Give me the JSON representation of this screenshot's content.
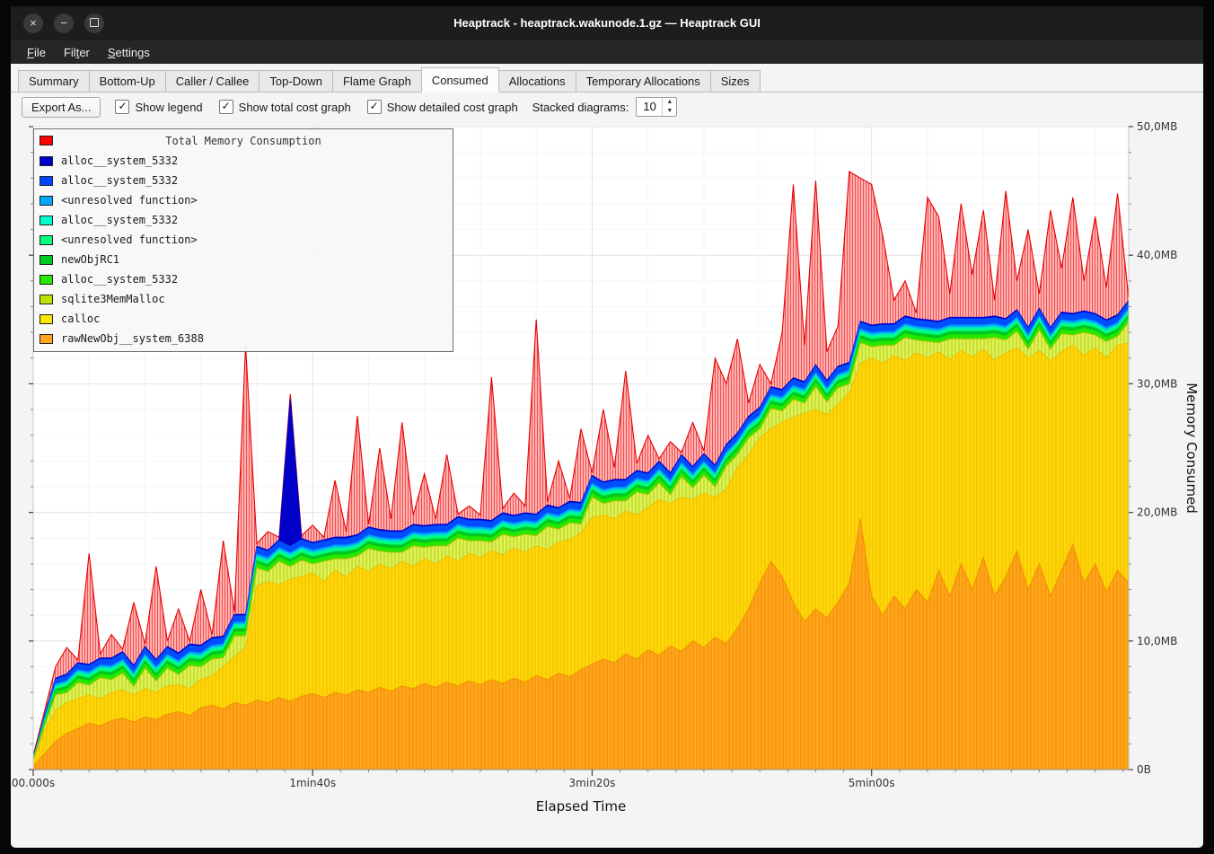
{
  "window": {
    "title": "Heaptrack - heaptrack.wakunode.1.gz — Heaptrack GUI",
    "buttons": [
      "close",
      "minimize",
      "maximize"
    ]
  },
  "icons": {
    "close": "×",
    "minimize": "−",
    "check": "✓",
    "spin_up": "▲",
    "spin_down": "▼"
  },
  "menu": {
    "items": [
      {
        "label": "File",
        "underline": 0
      },
      {
        "label": "Filter",
        "underline": 3
      },
      {
        "label": "Settings",
        "underline": 0
      }
    ]
  },
  "tabs": {
    "active_index": 5,
    "items": [
      "Summary",
      "Bottom-Up",
      "Caller / Callee",
      "Top-Down",
      "Flame Graph",
      "Consumed",
      "Allocations",
      "Temporary Allocations",
      "Sizes"
    ]
  },
  "toolbar": {
    "export_label": "Export As...",
    "checkboxes": [
      {
        "id": "show-legend",
        "label": "Show legend",
        "checked": true
      },
      {
        "id": "show-total-cost-graph",
        "label": "Show total cost graph",
        "checked": true
      },
      {
        "id": "show-detailed-cost-graph",
        "label": "Show detailed cost graph",
        "checked": true
      }
    ],
    "stacked_diagrams": {
      "label": "Stacked diagrams:",
      "value": "10"
    }
  },
  "chart_data": {
    "type": "area",
    "stacked": true,
    "xlabel": "Elapsed Time",
    "ylabel": "Memory Consumed",
    "x_seconds_step": 4,
    "x_max_seconds": 392,
    "y_max_mb": 50,
    "x_minor_tick_seconds": 10,
    "y_minor_tick_mb": 2,
    "x_ticks": [
      {
        "t": 0,
        "label": "00.000s"
      },
      {
        "t": 100,
        "label": "1min40s"
      },
      {
        "t": 200,
        "label": "3min20s"
      },
      {
        "t": 300,
        "label": "5min00s"
      }
    ],
    "y_ticks": [
      {
        "mb": 0,
        "label": "0B"
      },
      {
        "mb": 10,
        "label": "10,0MB"
      },
      {
        "mb": 20,
        "label": "20,0MB"
      },
      {
        "mb": 30,
        "label": "30,0MB"
      },
      {
        "mb": 40,
        "label": "40,0MB"
      },
      {
        "mb": 50,
        "label": "50,0MB"
      }
    ],
    "legend": {
      "title": "Total Memory Consumption",
      "title_color": "#ff0000",
      "position": "top-left",
      "items": [
        {
          "label": "alloc__system_5332",
          "color": "#0000cd"
        },
        {
          "label": "alloc__system_5332",
          "color": "#0046ff"
        },
        {
          "label": "<unresolved function>",
          "color": "#00a6ff"
        },
        {
          "label": "alloc__system_5332",
          "color": "#00ffcf"
        },
        {
          "label": "<unresolved function>",
          "color": "#00ff7f"
        },
        {
          "label": "newObjRC1",
          "color": "#00cc22"
        },
        {
          "label": "alloc__system_5332",
          "color": "#23e800"
        },
        {
          "label": "sqlite3MemMalloc",
          "color": "#bfe300"
        },
        {
          "label": "calloc",
          "color": "#ffe600"
        },
        {
          "label": "rawNewObj__system_6388",
          "color": "#ffa51e"
        }
      ]
    },
    "colors": {
      "red_fill": "#ffb6b6",
      "red_hatch": "#f25050",
      "red_stroke": "#e60000",
      "sqlite_fill": "#dff063",
      "sqlite_hatch": "#b6d800",
      "sqlite_stroke": "#a2c600",
      "calloc_fill": "#ffd60a",
      "calloc_hatch": "#f0c200",
      "calloc_stroke": "#eec200",
      "orange_fill": "#ffa51e",
      "orange_hatch": "#f29100",
      "orange_stroke": "#ef9400",
      "grid_major": "#e2e2e2",
      "grid_minor": "#f5f5f5",
      "axis": "#8a8a8a"
    },
    "layers": {
      "rawNewObj_top_mb": [
        0.3,
        1.2,
        2.2,
        2.8,
        3.2,
        3.6,
        3.4,
        3.8,
        4.0,
        3.7,
        4.1,
        3.9,
        4.3,
        4.5,
        4.2,
        4.8,
        5.0,
        4.7,
        5.2,
        5.0,
        5.4,
        5.2,
        5.6,
        5.3,
        5.7,
        5.9,
        5.6,
        6.0,
        5.8,
        6.2,
        6.0,
        6.4,
        6.1,
        6.5,
        6.3,
        6.7,
        6.4,
        6.8,
        6.5,
        6.9,
        6.6,
        7.0,
        6.7,
        7.1,
        6.8,
        7.3,
        7.0,
        7.5,
        7.2,
        7.8,
        8.2,
        8.6,
        8.3,
        9.0,
        8.6,
        9.3,
        8.9,
        9.6,
        9.2,
        10.0,
        9.5,
        10.3,
        9.8,
        11.0,
        12.5,
        14.5,
        16.2,
        15.0,
        13.0,
        11.5,
        12.5,
        11.8,
        13.0,
        14.5,
        19.5,
        13.5,
        12.0,
        13.5,
        12.5,
        14.0,
        13.0,
        15.5,
        13.5,
        16.0,
        14.0,
        16.5,
        13.5,
        15.0,
        17.0,
        14.0,
        16.0,
        13.5,
        15.5,
        17.5,
        14.5,
        16.0,
        13.8,
        15.5,
        14.5
      ],
      "calloc_top_mb": [
        0.6,
        3.0,
        4.6,
        5.2,
        5.5,
        5.8,
        5.5,
        6.0,
        6.2,
        5.8,
        6.3,
        6.0,
        6.5,
        6.6,
        6.3,
        7.0,
        7.3,
        8.0,
        8.8,
        9.5,
        14.3,
        14.6,
        14.4,
        14.8,
        15.0,
        15.3,
        14.6,
        15.5,
        15.0,
        15.8,
        15.4,
        16.0,
        15.6,
        16.2,
        15.8,
        16.4,
        16.0,
        16.6,
        16.2,
        16.8,
        16.5,
        17.0,
        16.7,
        17.2,
        16.9,
        17.4,
        17.1,
        17.7,
        17.9,
        18.4,
        19.6,
        19.8,
        19.5,
        20.1,
        19.8,
        20.4,
        21.0,
        20.7,
        21.2,
        21.0,
        21.5,
        21.2,
        21.8,
        23.5,
        24.5,
        25.8,
        26.5,
        27.0,
        27.4,
        27.7,
        28.0,
        27.6,
        28.4,
        29.3,
        31.6,
        32.0,
        31.6,
        32.2,
        31.8,
        32.4,
        32.0,
        32.5,
        31.9,
        32.6,
        32.1,
        32.7,
        31.8,
        32.4,
        32.8,
        32.0,
        32.6,
        31.8,
        32.5,
        33.0,
        32.2,
        32.8,
        32.0,
        33.0,
        33.2
      ],
      "sqlite_band_pattern_mb": [
        1.3,
        0.7,
        1.6,
        0.9,
        1.4,
        0.8,
        1.8,
        1.0
      ],
      "thin_bands_mb": [
        {
          "name": "alloc__system_5332",
          "color": "#23e800",
          "mb": 0.3
        },
        {
          "name": "newObjRC1",
          "color": "#00c822",
          "mb": 0.25
        },
        {
          "name": "<unresolved function>",
          "color": "#00ff7f",
          "mb": 0.2
        },
        {
          "name": "alloc__system_5332",
          "color": "#00e6c3",
          "mb": 0.15
        },
        {
          "name": "<unresolved function>",
          "color": "#00a2ff",
          "mb": 0.15
        },
        {
          "name": "alloc__system_5332",
          "color": "#004eff",
          "mb": 0.5
        },
        {
          "name": "alloc__system_5332",
          "color": "#0000c8",
          "mb": 0.12
        }
      ],
      "dark_blue_spike": {
        "t_seconds": 92,
        "mb": 28.8
      },
      "total_top_mb": [
        1.0,
        4.5,
        8.0,
        9.5,
        8.5,
        16.8,
        9.0,
        10.5,
        9.0,
        13.0,
        9.5,
        15.8,
        10.0,
        12.5,
        9.8,
        14.0,
        10.5,
        17.8,
        12.0,
        33.0,
        17.5,
        18.5,
        17.8,
        29.2,
        18.2,
        19.0,
        18.0,
        22.5,
        18.5,
        27.5,
        19.0,
        25.0,
        19.5,
        27.0,
        19.8,
        23.0,
        19.5,
        24.5,
        19.8,
        20.5,
        19.8,
        30.5,
        20.3,
        21.5,
        20.5,
        35.0,
        20.8,
        24.0,
        21.0,
        26.5,
        23.0,
        28.0,
        23.5,
        31.0,
        23.8,
        26.0,
        24.0,
        25.5,
        24.5,
        27.0,
        24.8,
        32.0,
        30.0,
        33.5,
        28.5,
        31.5,
        30.0,
        34.0,
        45.5,
        33.0,
        45.8,
        32.5,
        34.5,
        46.5,
        46.0,
        45.5,
        41.5,
        36.5,
        38.0,
        35.5,
        44.5,
        43.0,
        37.0,
        44.0,
        38.5,
        43.5,
        36.5,
        45.0,
        38.0,
        42.0,
        37.0,
        43.5,
        39.0,
        44.5,
        38.0,
        43.0,
        37.5,
        44.8,
        36.5
      ]
    }
  }
}
